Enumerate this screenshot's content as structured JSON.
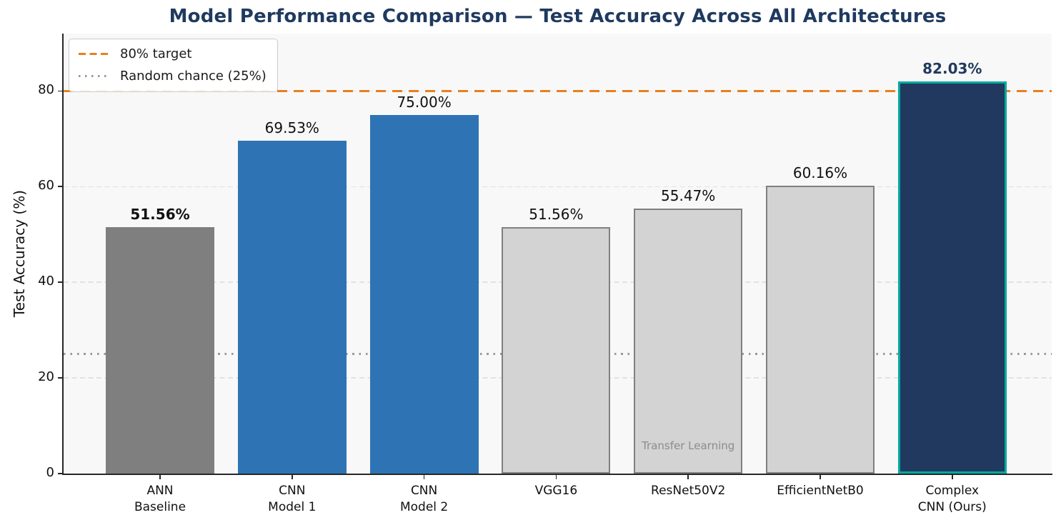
{
  "title": "Model Performance Comparison — Test Accuracy Across All Architectures",
  "legend": {
    "items": [
      {
        "label": "80% target",
        "color": "#e8801e",
        "style": "dashed"
      },
      {
        "label": "Random chance (25%)",
        "color": "#999999",
        "style": "dotted"
      }
    ]
  },
  "chart_data": {
    "type": "bar",
    "title": "Model Performance Comparison — Test Accuracy Across All Architectures",
    "xlabel": "",
    "ylabel": "Test Accuracy (%)",
    "ylim": [
      0,
      92
    ],
    "yticks": [
      0,
      20,
      40,
      60,
      80
    ],
    "grid": "horizontal dashed gridlines at y ticks, drawn behind bars",
    "legend_position": "upper left",
    "categories": [
      "ANN\nBaseline",
      "CNN\nModel 1",
      "CNN\nModel 2",
      "VGG16",
      "ResNet50V2",
      "EfficientNetB0",
      "Complex\nCNN (Ours)"
    ],
    "values": [
      51.56,
      69.53,
      75.0,
      51.56,
      55.47,
      60.16,
      82.03
    ],
    "value_labels": [
      "51.56%",
      "69.53%",
      "75.00%",
      "51.56%",
      "55.47%",
      "60.16%",
      "82.03%"
    ],
    "bar_styles": [
      {
        "fill": "#7f7f7f",
        "edge": null,
        "edge_width": 0,
        "label_bold": true,
        "label_color": "#111111"
      },
      {
        "fill": "#2e74b5",
        "edge": null,
        "edge_width": 0,
        "label_bold": false,
        "label_color": "#111111"
      },
      {
        "fill": "#2e74b5",
        "edge": null,
        "edge_width": 0,
        "label_bold": false,
        "label_color": "#111111"
      },
      {
        "fill": "#d3d3d3",
        "edge": "#808080",
        "edge_width": 2.5,
        "label_bold": false,
        "label_color": "#111111"
      },
      {
        "fill": "#d3d3d3",
        "edge": "#808080",
        "edge_width": 2.5,
        "label_bold": false,
        "label_color": "#111111"
      },
      {
        "fill": "#d3d3d3",
        "edge": "#808080",
        "edge_width": 2.5,
        "label_bold": false,
        "label_color": "#111111"
      },
      {
        "fill": "#21395f",
        "edge": "#00ab9e",
        "edge_width": 3.5,
        "label_bold": true,
        "label_color": "#1f3a5f"
      }
    ],
    "reference_lines": [
      {
        "y": 80,
        "label": "80% target",
        "color": "#e8801e",
        "style": "dashed",
        "width": 3.5
      },
      {
        "y": 25,
        "label": "Random chance (25%)",
        "color": "#999999",
        "style": "dotted",
        "width": 2.6
      }
    ],
    "annotation": {
      "text": "Transfer Learning",
      "bar_index": 4,
      "color": "#8c8c8c"
    }
  }
}
